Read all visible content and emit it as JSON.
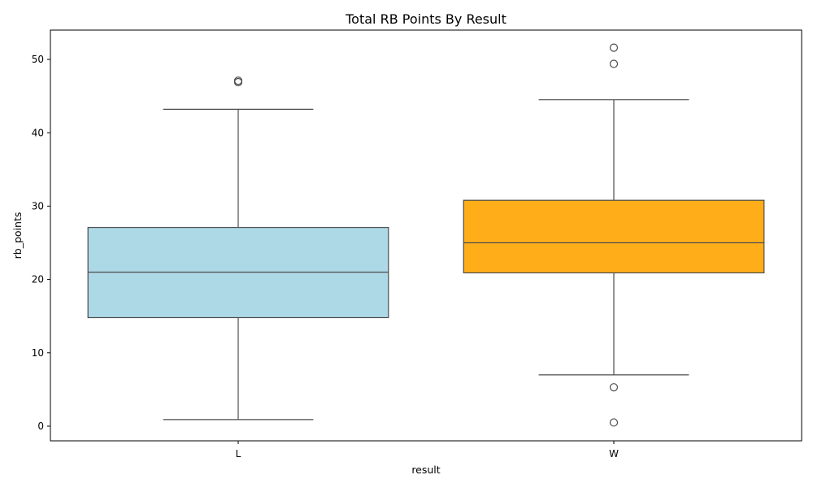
{
  "chart_data": {
    "type": "box",
    "title": "Total RB Points By Result",
    "xlabel": "result",
    "ylabel": "rb_points",
    "ylim": [
      -2,
      54
    ],
    "yticks": [
      "0",
      "10",
      "20",
      "30",
      "40",
      "50"
    ],
    "categories": [
      "L",
      "W"
    ],
    "grid": false,
    "series": [
      {
        "category": "L",
        "color": "#add8e6",
        "whisker_low": 0.9,
        "q1": 14.8,
        "median": 21.0,
        "q3": 27.1,
        "whisker_high": 43.2,
        "outliers": [
          46.9,
          47.1
        ]
      },
      {
        "category": "W",
        "color": "#ffa500",
        "whisker_low": 7.0,
        "q1": 20.9,
        "median": 25.0,
        "q3": 30.8,
        "whisker_high": 44.5,
        "outliers": [
          0.5,
          5.3,
          49.4,
          51.6
        ]
      }
    ]
  }
}
